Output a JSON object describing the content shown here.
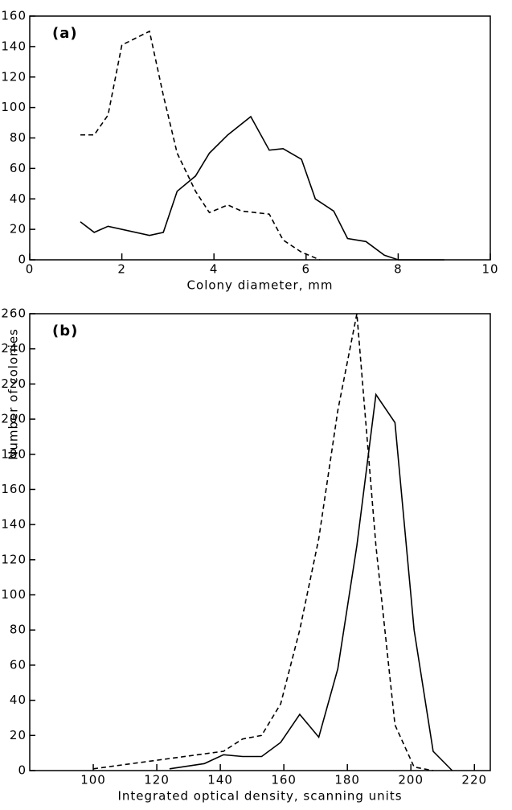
{
  "y_label": "Number of colonies",
  "chart_data": [
    {
      "type": "line",
      "panel_label": "(a)",
      "xlabel": "Colony diameter, mm",
      "xlim": [
        0,
        10
      ],
      "xticks": [
        0,
        2,
        4,
        6,
        8,
        10
      ],
      "ylim": [
        0,
        160
      ],
      "yticks": [
        0,
        20,
        40,
        60,
        80,
        100,
        120,
        140,
        160
      ],
      "series": [
        {
          "color": "#000000",
          "dash": false,
          "x": [
            1.1,
            1.4,
            1.7,
            2.6,
            2.9,
            3.2,
            3.6,
            3.9,
            4.3,
            4.8,
            5.2,
            5.5,
            5.9,
            6.2,
            6.6,
            6.9,
            7.3,
            7.7,
            8.0,
            9.0
          ],
          "values": [
            25,
            18,
            22,
            16,
            18,
            45,
            55,
            70,
            82,
            94,
            72,
            73,
            66,
            40,
            32,
            14,
            12,
            3,
            0,
            0
          ]
        },
        {
          "color": "#000000",
          "dash": true,
          "x": [
            1.1,
            1.4,
            1.7,
            2.0,
            2.6,
            2.9,
            3.2,
            3.6,
            3.9,
            4.3,
            4.6,
            4.9,
            5.2,
            5.5,
            5.9,
            6.3
          ],
          "values": [
            82,
            82,
            95,
            141,
            150,
            108,
            70,
            45,
            31,
            36,
            32,
            31,
            30,
            13,
            5,
            0
          ]
        }
      ]
    },
    {
      "type": "line",
      "panel_label": "(b)",
      "xlabel": "Integrated optical density, scanning units",
      "xlim": [
        80,
        225
      ],
      "xticks": [
        100,
        120,
        140,
        160,
        180,
        200,
        220
      ],
      "ylim": [
        0,
        260
      ],
      "yticks": [
        0,
        20,
        40,
        60,
        80,
        100,
        120,
        140,
        160,
        180,
        200,
        220,
        240,
        260
      ],
      "series": [
        {
          "color": "#000000",
          "dash": false,
          "x": [
            124,
            135,
            141,
            147,
            153,
            159,
            165,
            171,
            177,
            183,
            189,
            195,
            201,
            207,
            213
          ],
          "values": [
            1,
            4,
            9,
            8,
            8,
            16,
            32,
            19,
            58,
            128,
            214,
            198,
            80,
            11,
            0
          ]
        },
        {
          "color": "#000000",
          "dash": true,
          "x": [
            100,
            141,
            147,
            153,
            159,
            165,
            171,
            177,
            183,
            189,
            195,
            201,
            207
          ],
          "values": [
            1,
            11,
            18,
            20,
            38,
            80,
            132,
            205,
            260,
            128,
            26,
            2,
            0
          ]
        }
      ]
    }
  ]
}
